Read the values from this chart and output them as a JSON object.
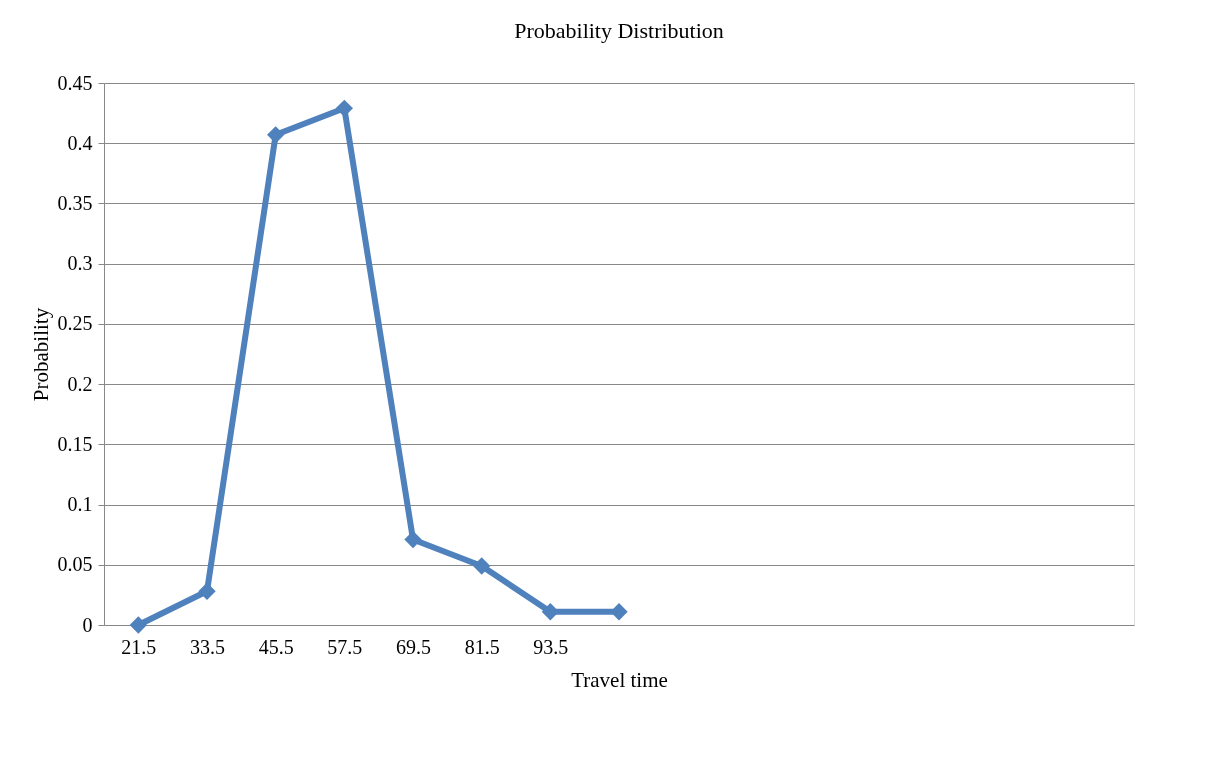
{
  "chart_data": {
    "type": "line",
    "title": "Probability Distribution",
    "xlabel": "Travel time",
    "ylabel": "Probability",
    "categories": [
      "21.5",
      "33.5",
      "45.5",
      "57.5",
      "69.5",
      "81.5",
      "93.5",
      null,
      null,
      null,
      null,
      null,
      null,
      null,
      null
    ],
    "series": [
      {
        "color": "#4f81bd",
        "values": [
          0,
          0.028,
          0.407,
          0.429,
          0.071,
          0.049,
          0.011,
          0.011,
          null,
          null,
          null,
          null,
          null,
          null,
          null
        ]
      }
    ],
    "ylim": [
      0,
      0.45
    ],
    "yticks": [
      0,
      0.05,
      0.1,
      0.15,
      0.2,
      0.25,
      0.3,
      0.35,
      0.4,
      0.45
    ],
    "grid": "y",
    "marker": "diamond",
    "line_style": "solid",
    "legend": false
  }
}
